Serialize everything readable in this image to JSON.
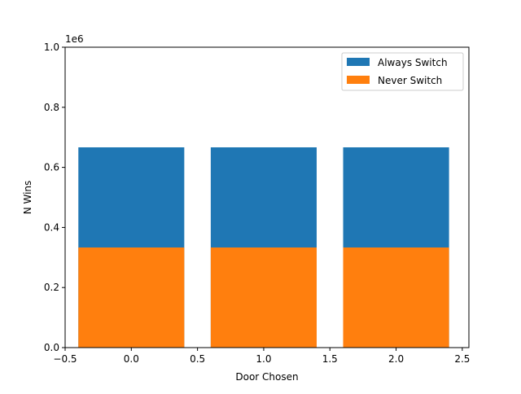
{
  "chart_data": {
    "type": "bar",
    "stacked_overlay": true,
    "x": [
      0,
      1,
      2
    ],
    "bar_width": 0.8,
    "series": [
      {
        "name": "Always Switch",
        "values": [
          666700,
          666700,
          666700
        ],
        "color": "#1f77b4"
      },
      {
        "name": "Never Switch",
        "values": [
          333300,
          333300,
          333300
        ],
        "color": "#ff7f0e"
      }
    ],
    "xlabel": "Door Chosen",
    "ylabel": "N Wins",
    "y_offset_label": "1e6",
    "xlim": [
      -0.5,
      2.55
    ],
    "ylim": [
      0,
      1000000
    ],
    "x_ticks": [
      -0.5,
      0.0,
      0.5,
      1.0,
      1.5,
      2.0,
      2.5
    ],
    "x_tick_labels": [
      "−0.5",
      "0.0",
      "0.5",
      "1.0",
      "1.5",
      "2.0",
      "2.5"
    ],
    "y_ticks": [
      0,
      200000,
      400000,
      600000,
      800000,
      1000000
    ],
    "y_tick_labels": [
      "0.0",
      "0.2",
      "0.4",
      "0.6",
      "0.8",
      "1.0"
    ],
    "grid": false,
    "legend_position": "top-right"
  }
}
